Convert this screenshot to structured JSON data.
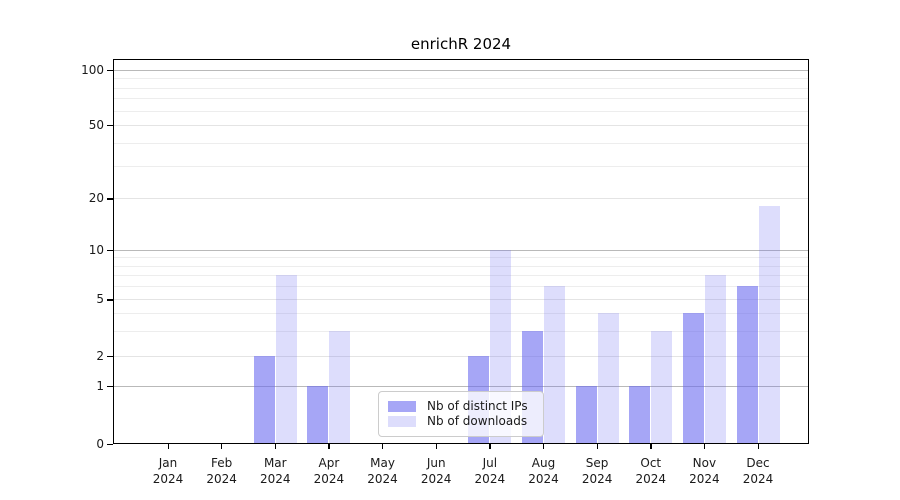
{
  "chart_data": {
    "type": "bar",
    "title": "enrichR 2024",
    "categories": [
      "Jan",
      "Feb",
      "Mar",
      "Apr",
      "May",
      "Jun",
      "Jul",
      "Aug",
      "Sep",
      "Oct",
      "Nov",
      "Dec"
    ],
    "x_tick_year": "2024",
    "series": [
      {
        "name": "Nb of distinct IPs",
        "color": "rgba(102,102,240,0.58)",
        "values": [
          0,
          0,
          2,
          1,
          0,
          0,
          2,
          3,
          1,
          1,
          4,
          6
        ]
      },
      {
        "name": "Nb of downloads",
        "color": "rgba(102,102,240,0.22)",
        "values": [
          0,
          0,
          7,
          3,
          0,
          0,
          10,
          6,
          4,
          3,
          7,
          18
        ]
      }
    ],
    "y_axis": {
      "ticks": [
        "0",
        "1",
        "2",
        "5",
        "10",
        "20",
        "50",
        "100"
      ],
      "scale": "log-like",
      "range_bottom": 0,
      "range_top": 100
    },
    "grid": "horizontal-only",
    "legend": {
      "position": "lower-center-inside",
      "items": [
        "Nb of distinct IPs",
        "Nb of downloads"
      ]
    },
    "colors": {
      "bar_base": "#6666f0",
      "major_grid": "#b9b9b9",
      "minor_grid": "#ededed",
      "axis": "#000000"
    }
  }
}
